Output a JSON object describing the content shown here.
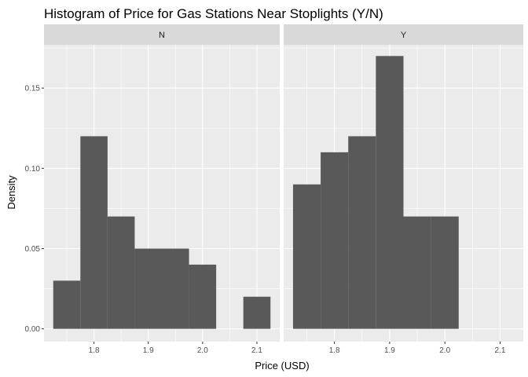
{
  "chart_data": {
    "type": "bar",
    "title": "Histogram of Price for Gas Stations Near Stoplights (Y/N)",
    "xlabel": "Price (USD)",
    "ylabel": "Density",
    "xlim": [
      1.708,
      2.142
    ],
    "ylim": [
      -0.008,
      0.177
    ],
    "xticks": [
      1.8,
      1.9,
      2.0,
      2.1
    ],
    "xtick_labels": [
      "1.8",
      "1.9",
      "2.0",
      "2.1"
    ],
    "yticks": [
      0.0,
      0.05,
      0.1,
      0.15
    ],
    "ytick_labels": [
      "0.00",
      "0.05",
      "0.10",
      "0.15"
    ],
    "bin_width": 0.05,
    "grid": true,
    "panels": [
      {
        "name": "N",
        "bins": [
          {
            "xmin": 1.725,
            "xmax": 1.775,
            "density": 0.03
          },
          {
            "xmin": 1.775,
            "xmax": 1.825,
            "density": 0.12
          },
          {
            "xmin": 1.825,
            "xmax": 1.875,
            "density": 0.07
          },
          {
            "xmin": 1.875,
            "xmax": 1.925,
            "density": 0.05
          },
          {
            "xmin": 1.925,
            "xmax": 1.975,
            "density": 0.05
          },
          {
            "xmin": 1.975,
            "xmax": 2.025,
            "density": 0.04
          },
          {
            "xmin": 2.025,
            "xmax": 2.075,
            "density": 0.0
          },
          {
            "xmin": 2.075,
            "xmax": 2.125,
            "density": 0.02
          }
        ]
      },
      {
        "name": "Y",
        "bins": [
          {
            "xmin": 1.725,
            "xmax": 1.775,
            "density": 0.09
          },
          {
            "xmin": 1.775,
            "xmax": 1.825,
            "density": 0.11
          },
          {
            "xmin": 1.825,
            "xmax": 1.875,
            "density": 0.12
          },
          {
            "xmin": 1.875,
            "xmax": 1.925,
            "density": 0.17
          },
          {
            "xmin": 1.925,
            "xmax": 1.975,
            "density": 0.07
          },
          {
            "xmin": 1.975,
            "xmax": 2.025,
            "density": 0.07
          }
        ]
      }
    ],
    "colors": {
      "bar": "#595959",
      "panel_background": "#ebebeb",
      "grid_major": "#ffffff",
      "strip_background": "#d9d9d9",
      "tick": "#333333"
    }
  }
}
